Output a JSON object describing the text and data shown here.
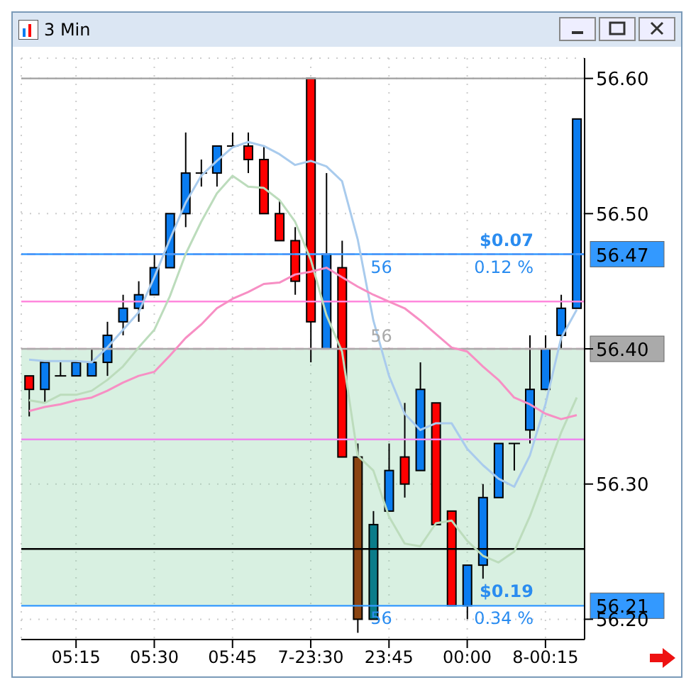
{
  "chart_data": {
    "type": "candlestick",
    "title": "3 Min",
    "categories": [
      null,
      null,
      null,
      "05:15",
      null,
      null,
      null,
      null,
      "05:30",
      null,
      null,
      null,
      null,
      "05:45",
      null,
      null,
      null,
      null,
      "7-23:30",
      null,
      null,
      null,
      null,
      "23:45",
      null,
      null,
      null,
      null,
      "00:00",
      null,
      null,
      null,
      null,
      "8-00:15",
      null,
      null
    ],
    "ohlc": [
      [
        56.38,
        56.38,
        56.35,
        56.37
      ],
      [
        56.37,
        56.39,
        56.36,
        56.39
      ],
      [
        56.38,
        56.39,
        56.38,
        56.38
      ],
      [
        56.38,
        56.39,
        56.38,
        56.39
      ],
      [
        56.38,
        56.4,
        56.38,
        56.39
      ],
      [
        56.39,
        56.42,
        56.38,
        56.41
      ],
      [
        56.42,
        56.44,
        56.41,
        56.43
      ],
      [
        56.43,
        56.45,
        56.42,
        56.44
      ],
      [
        56.44,
        56.47,
        56.44,
        56.46
      ],
      [
        56.46,
        56.5,
        56.46,
        56.5
      ],
      [
        56.5,
        56.56,
        56.49,
        56.53
      ],
      [
        56.53,
        56.54,
        56.52,
        56.53
      ],
      [
        56.53,
        56.55,
        56.52,
        56.55
      ],
      [
        56.55,
        56.56,
        56.55,
        56.55
      ],
      [
        56.55,
        56.56,
        56.53,
        56.54
      ],
      [
        56.54,
        56.55,
        56.5,
        56.5
      ],
      [
        56.5,
        56.51,
        56.48,
        56.48
      ],
      [
        56.48,
        56.49,
        56.44,
        56.45
      ],
      [
        56.6,
        56.6,
        56.39,
        56.42
      ],
      [
        56.4,
        56.53,
        56.4,
        56.47
      ],
      [
        56.46,
        56.48,
        56.32,
        56.32
      ],
      [
        56.32,
        56.33,
        56.19,
        56.2
      ],
      [
        56.2,
        56.28,
        56.2,
        56.27
      ],
      [
        56.28,
        56.33,
        56.28,
        56.31
      ],
      [
        56.32,
        56.36,
        56.29,
        56.3
      ],
      [
        56.31,
        56.39,
        56.31,
        56.37
      ],
      [
        56.36,
        56.36,
        56.27,
        56.27
      ],
      [
        56.28,
        56.28,
        56.21,
        56.21
      ],
      [
        56.21,
        56.24,
        56.2,
        56.24
      ],
      [
        56.24,
        56.3,
        56.23,
        56.29
      ],
      [
        56.29,
        56.33,
        56.29,
        56.33
      ],
      [
        56.33,
        56.33,
        56.31,
        56.33
      ],
      [
        56.34,
        56.41,
        56.33,
        56.37
      ],
      [
        56.37,
        56.41,
        56.37,
        56.4
      ],
      [
        56.41,
        56.44,
        56.4,
        56.43
      ],
      [
        56.43,
        56.57,
        56.43,
        56.57
      ]
    ],
    "colors": [
      "#ff0000",
      "#0a7cf0",
      "#000000",
      "#0a7cf0",
      "#0a7cf0",
      "#0a7cf0",
      "#0a7cf0",
      "#0a7cf0",
      "#0a7cf0",
      "#0a7cf0",
      "#0a7cf0",
      "#000000",
      "#0a7cf0",
      "#000000",
      "#ff0000",
      "#ff0000",
      "#ff0000",
      "#ff0000",
      "#ff0000",
      "#0a7cf0",
      "#ff0000",
      "#8b4513",
      "#0a7c8a",
      "#0a7cf0",
      "#ff0000",
      "#0a7cf0",
      "#ff0000",
      "#ff0000",
      "#0a7cf0",
      "#0a7cf0",
      "#0a7cf0",
      "#000000",
      "#0a7cf0",
      "#0a7cf0",
      "#0a7cf0",
      "#0a7cf0"
    ],
    "series": [
      {
        "type": "line",
        "color": "#a9cbed",
        "values": [
          56.392,
          56.391,
          56.391,
          56.391,
          56.39,
          56.401,
          56.414,
          56.427,
          56.453,
          56.481,
          56.508,
          56.528,
          56.539,
          56.549,
          56.553,
          56.55,
          56.544,
          56.536,
          56.539,
          56.535,
          56.524,
          56.481,
          56.421,
          56.38,
          56.352,
          56.34,
          56.345,
          56.345,
          56.326,
          56.314,
          56.304,
          56.298,
          56.321,
          56.359,
          56.408,
          56.429
        ]
      },
      {
        "type": "line",
        "color": "#bcdcbc",
        "values": [
          56.362,
          56.36,
          56.366,
          56.366,
          56.369,
          56.377,
          56.387,
          56.401,
          56.414,
          56.439,
          56.47,
          56.494,
          56.515,
          56.528,
          56.52,
          56.519,
          56.51,
          56.494,
          56.466,
          56.425,
          56.398,
          56.321,
          56.31,
          56.276,
          56.256,
          56.254,
          56.271,
          56.273,
          56.258,
          56.247,
          56.242,
          56.25,
          56.276,
          56.307,
          56.338,
          56.364
        ]
      },
      {
        "type": "line",
        "color": "#f78fc4",
        "values": [
          56.354,
          56.357,
          56.359,
          56.362,
          56.364,
          56.369,
          56.375,
          56.38,
          56.383,
          56.395,
          56.408,
          56.418,
          56.43,
          56.437,
          56.442,
          56.448,
          56.449,
          56.455,
          56.457,
          56.46,
          56.453,
          56.446,
          56.44,
          56.435,
          56.43,
          56.421,
          56.411,
          56.401,
          56.398,
          56.387,
          56.377,
          56.364,
          56.359,
          56.352,
          56.348,
          56.351
        ]
      }
    ],
    "ylim": [
      56.185,
      56.615
    ],
    "yticks": [
      {
        "value": 56.2,
        "label": "56.20"
      },
      {
        "value": 56.3,
        "label": "56.30"
      },
      {
        "value": 56.4,
        "label": null
      },
      {
        "value": 56.5,
        "label": "56.50"
      },
      {
        "value": 56.6,
        "label": "56.60"
      }
    ],
    "grid": true,
    "ref_lines": [
      {
        "axis": "y",
        "value": 56.6,
        "color": "#a0a0a0",
        "line_style": "solid"
      },
      {
        "axis": "y",
        "value": 56.47,
        "color": "#f78fc4",
        "line_style": "dashed"
      },
      {
        "axis": "y",
        "value": 56.435,
        "color": "#ff88dd",
        "line_style": "solid"
      },
      {
        "axis": "y",
        "value": 56.4,
        "color": "#f78fc4",
        "line_style": "dashed"
      },
      {
        "axis": "y",
        "value": 56.333,
        "color": "#ee88ee",
        "line_style": "solid"
      },
      {
        "axis": "y",
        "value": 56.252,
        "color": "#000000",
        "line_style": "solid"
      },
      {
        "axis": "y",
        "value": 56.47,
        "label": "56.47",
        "color": "#3399ff",
        "line_style": "solid"
      },
      {
        "axis": "y",
        "value": 56.4,
        "label": "56.40",
        "color": "#aaaaaa",
        "line_style": "solid"
      },
      {
        "axis": "y",
        "value": 56.21,
        "label": "56.21",
        "color": "#3399ff",
        "line_style": "solid"
      }
    ],
    "bands": [
      {
        "axis": "y",
        "from": 56.21,
        "to": 56.4,
        "color": "#8fd3a8"
      }
    ],
    "annotations": [
      "$0.07",
      "0.12 %",
      "$0.19",
      "0.34 %",
      "56",
      "56",
      "56"
    ]
  }
}
